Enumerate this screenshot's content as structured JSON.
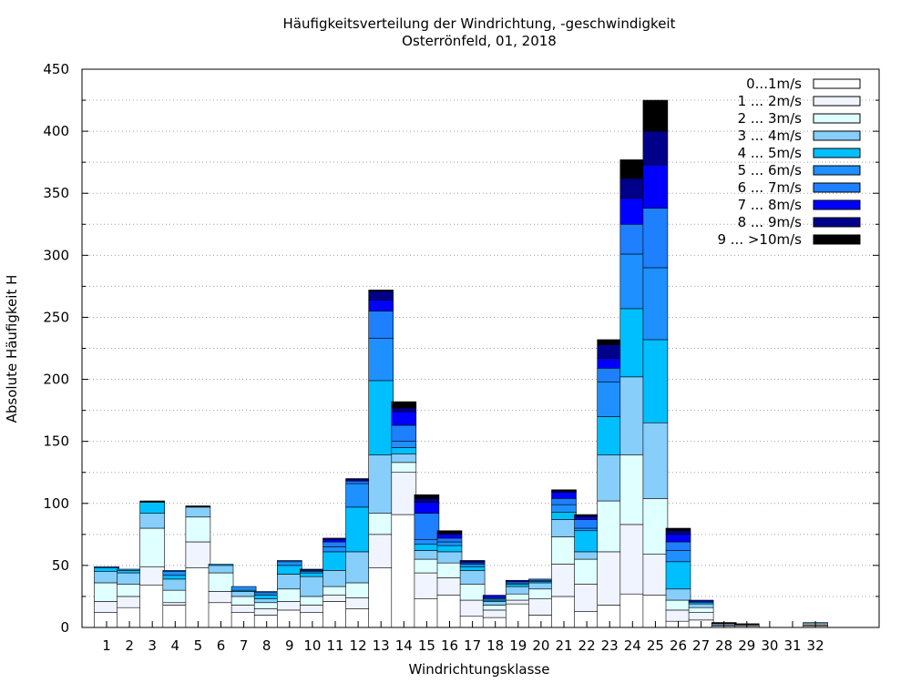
{
  "chart_data": {
    "type": "bar",
    "stacked": true,
    "title": "Häufigkeitsverteilung der Windrichtung, -geschwindigkeit",
    "subtitle": "Osterrönfeld, 01, 2018",
    "xlabel": "Windrichtungsklasse",
    "ylabel": "Absolute Häufigkeit H",
    "ylim": [
      0,
      450
    ],
    "yticks": [
      0,
      50,
      100,
      150,
      200,
      250,
      300,
      350,
      400,
      450
    ],
    "grid": true,
    "legend_position": "top-right",
    "categories": [
      "1",
      "2",
      "3",
      "4",
      "5",
      "6",
      "7",
      "8",
      "9",
      "10",
      "11",
      "12",
      "13",
      "14",
      "15",
      "16",
      "17",
      "18",
      "19",
      "20",
      "21",
      "22",
      "23",
      "24",
      "25",
      "26",
      "27",
      "28",
      "29",
      "30",
      "31",
      "32"
    ],
    "series": [
      {
        "name": "0...1m/s",
        "color": "#ffffff",
        "values": [
          12,
          16,
          34,
          18,
          48,
          20,
          12,
          10,
          14,
          12,
          21,
          15,
          48,
          91,
          23,
          26,
          9,
          8,
          19,
          10,
          25,
          13,
          18,
          27,
          26,
          5,
          6,
          1,
          1,
          0,
          0,
          1
        ]
      },
      {
        "name": "1 ... 2m/s",
        "color": "#f0f4ff",
        "values": [
          9,
          9,
          15,
          2,
          21,
          9,
          6,
          5,
          7,
          6,
          5,
          9,
          27,
          34,
          21,
          14,
          13,
          6,
          3,
          13,
          26,
          22,
          43,
          56,
          33,
          9,
          6,
          1,
          1,
          0,
          0,
          1
        ]
      },
      {
        "name": "2 ... 3m/s",
        "color": "#e0ffff",
        "values": [
          15,
          10,
          31,
          10,
          20,
          15,
          7,
          5,
          10,
          7,
          7,
          12,
          17,
          8,
          11,
          12,
          13,
          4,
          5,
          8,
          22,
          20,
          41,
          56,
          45,
          8,
          4,
          0,
          0,
          0,
          0,
          1
        ]
      },
      {
        "name": "3 ... 4m/s",
        "color": "#87cefa",
        "values": [
          9,
          9,
          12,
          9,
          8,
          6,
          4,
          3,
          12,
          16,
          13,
          25,
          47,
          7,
          7,
          9,
          11,
          3,
          6,
          5,
          14,
          6,
          37,
          63,
          61,
          9,
          3,
          1,
          0,
          0,
          0,
          1
        ]
      },
      {
        "name": "4 ... 5m/s",
        "color": "#00bfff",
        "values": [
          3,
          2,
          9,
          3,
          0,
          1,
          1,
          3,
          7,
          3,
          15,
          36,
          60,
          5,
          5,
          5,
          3,
          1,
          2,
          1,
          6,
          17,
          31,
          55,
          67,
          22,
          1,
          0,
          0,
          0,
          0,
          0
        ]
      },
      {
        "name": "5 ... 6m/s",
        "color": "#1e90ff",
        "values": [
          1,
          1,
          0,
          3,
          0,
          0,
          3,
          2,
          3,
          1,
          4,
          19,
          34,
          5,
          4,
          3,
          2,
          1,
          1,
          1,
          6,
          2,
          28,
          44,
          58,
          9,
          1,
          0,
          0,
          0,
          0,
          0
        ]
      },
      {
        "name": "6 ... 7m/s",
        "color": "#1e7fff",
        "values": [
          0,
          0,
          0,
          1,
          0,
          0,
          0,
          1,
          1,
          1,
          4,
          2,
          22,
          13,
          21,
          3,
          1,
          1,
          1,
          1,
          5,
          7,
          11,
          24,
          48,
          7,
          0,
          0,
          0,
          0,
          0,
          0
        ]
      },
      {
        "name": "7 ... 8m/s",
        "color": "#0000ff",
        "values": [
          0,
          0,
          0,
          0,
          0,
          0,
          0,
          0,
          0,
          0,
          2,
          1,
          9,
          11,
          9,
          3,
          1,
          2,
          1,
          0,
          5,
          2,
          8,
          21,
          35,
          6,
          1,
          0,
          0,
          0,
          0,
          0
        ]
      },
      {
        "name": "8 ... 9m/s",
        "color": "#00008b",
        "values": [
          0,
          0,
          0,
          0,
          0,
          0,
          0,
          0,
          0,
          1,
          1,
          1,
          7,
          3,
          3,
          1,
          1,
          0,
          0,
          0,
          1,
          1,
          11,
          16,
          27,
          3,
          0,
          0,
          0,
          0,
          0,
          0
        ]
      },
      {
        "name": "9 ... >10m/s",
        "color": "#000000",
        "values": [
          0,
          0,
          1,
          0,
          1,
          0,
          0,
          0,
          0,
          0,
          0,
          0,
          1,
          5,
          3,
          2,
          0,
          0,
          0,
          0,
          1,
          1,
          4,
          15,
          25,
          2,
          0,
          1,
          1,
          0,
          0,
          0
        ]
      }
    ]
  }
}
